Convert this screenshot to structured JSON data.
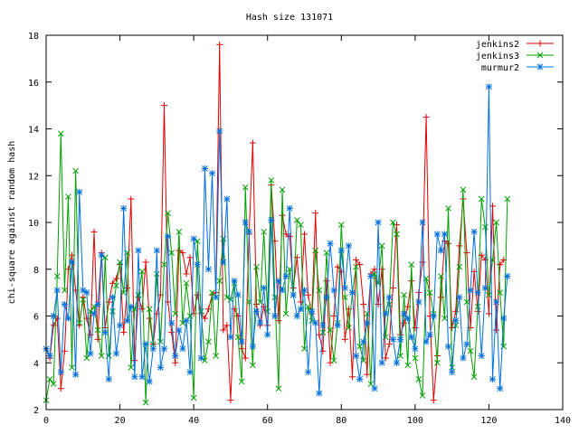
{
  "chart_data": {
    "type": "line",
    "title": "Hash size 131071",
    "xlabel": "",
    "ylabel": "chi-square against random hash",
    "xlim": [
      0,
      140
    ],
    "ylim": [
      2,
      18
    ],
    "xticks": [
      0,
      20,
      40,
      60,
      80,
      100,
      120,
      140
    ],
    "yticks": [
      2,
      4,
      6,
      8,
      10,
      12,
      14,
      16,
      18
    ],
    "grid": false,
    "legend_position": "top-right",
    "series": [
      {
        "name": "jenkins2",
        "color": "#e00000",
        "marker": "plus",
        "values": [
          4.6,
          4.2,
          5.6,
          5.9,
          2.9,
          4.5,
          8.0,
          8.6,
          7.1,
          5.6,
          6.8,
          5.9,
          5.2,
          9.6,
          5.0,
          8.7,
          5.5,
          6.6,
          7.4,
          7.6,
          8.2,
          5.3,
          7.2,
          11.0,
          4.1,
          6.8,
          6.3,
          8.3,
          5.9,
          4.8,
          6.1,
          6.9,
          15.0,
          6.6,
          5.3,
          4.0,
          8.8,
          8.7,
          7.8,
          8.5,
          6.1,
          6.9,
          6.1,
          5.9,
          6.3,
          6.9,
          7.0,
          17.6,
          5.4,
          5.6,
          2.4,
          6.3,
          6.0,
          4.6,
          4.2,
          9.5,
          13.4,
          6.5,
          5.6,
          6.4,
          5.6,
          11.6,
          9.2,
          5.8,
          10.3,
          9.5,
          9.4,
          7.2,
          8.5,
          6.6,
          9.5,
          6.9,
          6.1,
          10.4,
          5.2,
          4.5,
          7.5,
          4.0,
          6.0,
          8.1,
          7.9,
          5.0,
          6.3,
          3.4,
          8.4,
          8.2,
          6.5,
          3.5,
          7.8,
          8.0,
          6.5,
          8.0,
          4.2,
          4.8,
          7.2,
          9.9,
          5.2,
          5.7,
          6.4,
          7.5,
          5.5,
          7.0,
          8.3,
          14.5,
          6.0,
          2.4,
          4.3,
          6.8,
          9.2,
          9.1,
          5.5,
          6.2,
          9.0,
          11.0,
          8.7,
          5.5,
          7.9,
          6.2,
          8.6,
          8.4,
          6.1,
          10.7,
          5.4,
          8.2,
          8.4
        ]
      },
      {
        "name": "jenkins3",
        "color": "#00a000",
        "marker": "cross",
        "values": [
          2.4,
          3.3,
          3.1,
          7.7,
          13.8,
          7.1,
          11.1,
          3.8,
          12.2,
          5.7,
          6.7,
          4.2,
          6.2,
          6.4,
          5.4,
          4.3,
          8.5,
          4.3,
          6.2,
          7.3,
          8.3,
          7.0,
          8.7,
          3.8,
          6.3,
          6.9,
          7.9,
          2.3,
          6.3,
          4.8,
          7.8,
          4.9,
          8.2,
          10.4,
          8.7,
          6.1,
          9.6,
          5.7,
          7.4,
          6.0,
          2.5,
          9.2,
          6.2,
          4.1,
          4.9,
          7.0,
          4.3,
          7.5,
          9.3,
          6.8,
          6.7,
          7.4,
          5.1,
          3.2,
          11.5,
          6.6,
          3.9,
          8.1,
          6.6,
          9.6,
          6.2,
          11.8,
          6.8,
          2.9,
          11.4,
          6.1,
          8.0,
          6.9,
          10.1,
          9.9,
          4.6,
          6.4,
          5.8,
          8.8,
          7.1,
          5.3,
          8.7,
          5.4,
          4.1,
          5.7,
          9.9,
          6.8,
          5.5,
          7.0,
          8.1,
          4.7,
          4.1,
          6.1,
          3.1,
          7.8,
          7.4,
          9.0,
          5.1,
          6.5,
          10.0,
          9.5,
          4.3,
          6.9,
          3.9,
          8.2,
          4.2,
          3.3,
          2.6,
          7.6,
          7.0,
          6.1,
          4.0,
          7.7,
          5.9,
          10.6,
          3.8,
          5.6,
          8.1,
          11.4,
          6.6,
          4.5,
          3.4,
          6.4,
          11.0,
          9.8,
          6.9,
          8.4,
          10.0,
          7.0,
          4.7,
          11.0
        ]
      },
      {
        "name": "murmur2",
        "color": "#0070e0",
        "marker": "star",
        "values": [
          4.6,
          4.3,
          6.0,
          7.1,
          3.6,
          6.5,
          5.9,
          8.3,
          3.5,
          11.3,
          7.1,
          7.0,
          4.4,
          6.1,
          6.5,
          8.6,
          5.3,
          3.3,
          6.8,
          4.4,
          5.6,
          10.6,
          5.8,
          6.4,
          3.4,
          8.8,
          3.4,
          4.8,
          3.2,
          4.6,
          8.8,
          3.8,
          4.6,
          9.4,
          5.7,
          4.3,
          5.4,
          4.6,
          5.8,
          3.6,
          9.3,
          8.2,
          4.2,
          12.3,
          8.0,
          12.1,
          6.8,
          13.9,
          8.3,
          11.0,
          5.1,
          7.5,
          6.9,
          4.9,
          10.0,
          9.6,
          4.7,
          6.2,
          5.7,
          7.2,
          5.2,
          10.1,
          6.0,
          7.5,
          7.1,
          7.7,
          10.6,
          6.9,
          6.0,
          6.3,
          7.1,
          3.6,
          6.2,
          5.7,
          2.7,
          5.6,
          6.8,
          9.1,
          7.1,
          5.6,
          8.8,
          7.2,
          9.0,
          7.0,
          4.3,
          3.3,
          4.9,
          5.7,
          7.7,
          2.9,
          10.0,
          4.0,
          6.1,
          6.8,
          5.0,
          4.0,
          5.0,
          6.1,
          5.9,
          5.1,
          4.6,
          6.6,
          10.0,
          4.9,
          5.2,
          6.0,
          9.5,
          8.8,
          9.5,
          4.7,
          3.6,
          5.8,
          6.8,
          4.2,
          4.8,
          7.1,
          9.6,
          7.0,
          4.3,
          7.2,
          15.8,
          3.3,
          6.6,
          2.9,
          5.9,
          7.7
        ]
      }
    ]
  }
}
